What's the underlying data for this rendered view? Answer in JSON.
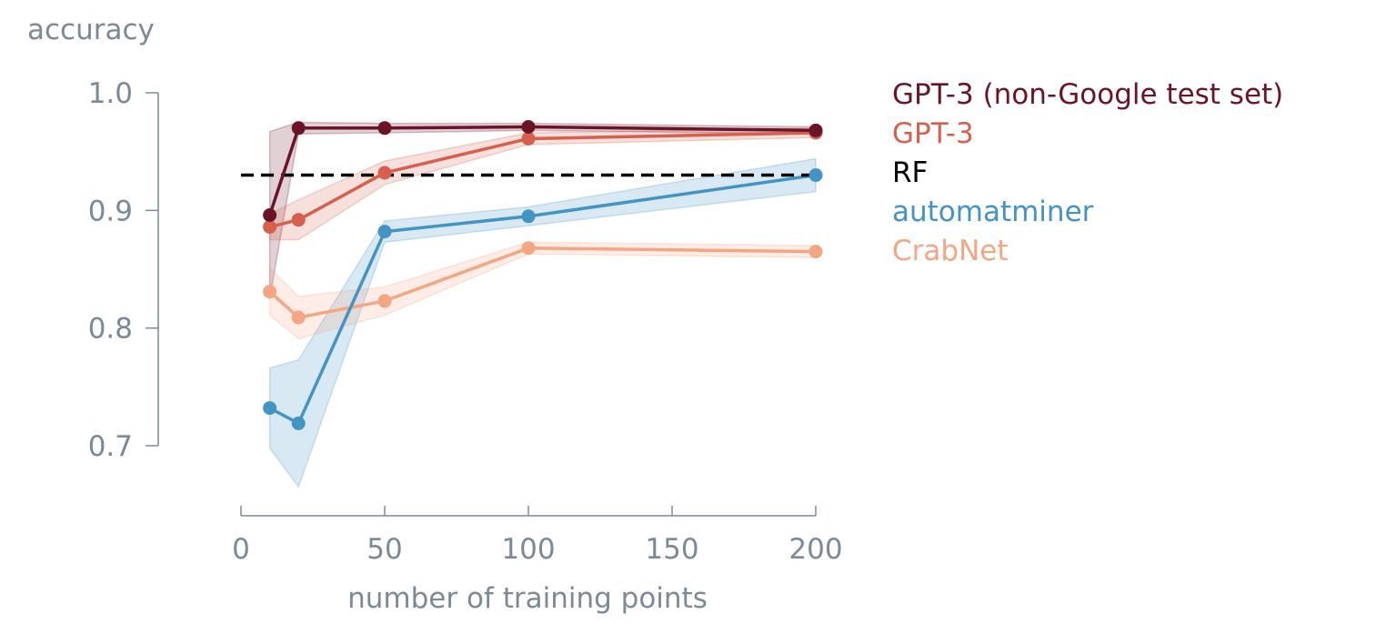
{
  "chart_data": {
    "type": "line",
    "title": "",
    "xlabel": "number of training points",
    "ylabel": "accuracy",
    "xlim": [
      0,
      200
    ],
    "ylim": [
      0.64,
      1.0
    ],
    "x_ticks": [
      0,
      50,
      100,
      150,
      200
    ],
    "x_tick_labels": [
      "0",
      "50",
      "100",
      "150",
      "200"
    ],
    "y_ticks": [
      0.7,
      0.8,
      0.9,
      1.0
    ],
    "y_tick_labels": [
      "0.7",
      "0.8",
      "0.9",
      "1.0"
    ],
    "grid": false,
    "legend_position": "right",
    "series": [
      {
        "name": "GPT-3 (non-Google test set)",
        "color": "#6b1428",
        "x": [
          10,
          20,
          50,
          100,
          200
        ],
        "y": [
          0.896,
          0.97,
          0.97,
          0.971,
          0.968
        ],
        "y_lower": [
          0.825,
          0.965,
          0.966,
          0.968,
          0.965
        ],
        "y_upper": [
          0.967,
          0.975,
          0.974,
          0.974,
          0.971
        ]
      },
      {
        "name": "GPT-3",
        "color": "#d6604d",
        "x": [
          10,
          20,
          50,
          100,
          200
        ],
        "y": [
          0.886,
          0.892,
          0.932,
          0.961,
          0.966
        ],
        "y_lower": [
          0.875,
          0.875,
          0.922,
          0.956,
          0.962
        ],
        "y_upper": [
          0.897,
          0.909,
          0.942,
          0.966,
          0.97
        ]
      },
      {
        "name": "RF",
        "color": "#000000",
        "style": "dashed",
        "x": [
          0,
          200
        ],
        "y": [
          0.93,
          0.93
        ]
      },
      {
        "name": "automatminer",
        "color": "#4393c3",
        "x": [
          10,
          20,
          50,
          100,
          200
        ],
        "y": [
          0.732,
          0.719,
          0.882,
          0.895,
          0.93
        ],
        "y_lower": [
          0.698,
          0.665,
          0.873,
          0.887,
          0.916
        ],
        "y_upper": [
          0.766,
          0.773,
          0.891,
          0.903,
          0.944
        ]
      },
      {
        "name": "CrabNet",
        "color": "#f4a582",
        "x": [
          10,
          20,
          50,
          100,
          200
        ],
        "y": [
          0.831,
          0.809,
          0.823,
          0.868,
          0.865
        ],
        "y_lower": [
          0.811,
          0.791,
          0.811,
          0.863,
          0.86
        ],
        "y_upper": [
          0.851,
          0.827,
          0.835,
          0.873,
          0.87
        ]
      }
    ]
  }
}
